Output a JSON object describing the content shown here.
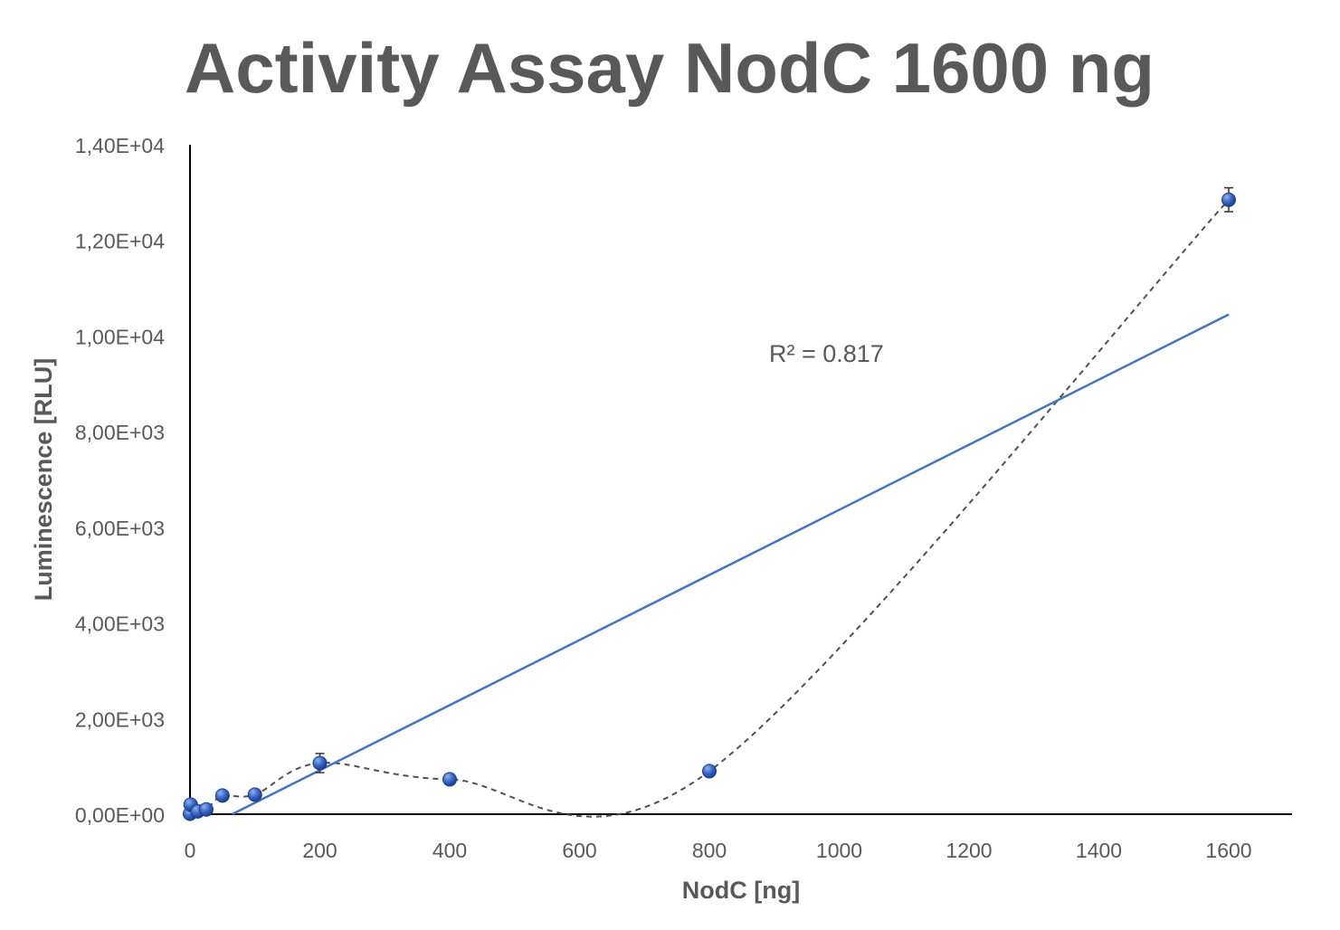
{
  "chart_data": {
    "type": "scatter",
    "title": "Activity Assay NodC 1600 ng",
    "xlabel": "NodC [ng]",
    "ylabel": "Luminescence [RLU]",
    "xlim": [
      0,
      1700
    ],
    "ylim": [
      0,
      14000
    ],
    "x_ticks": [
      0,
      200,
      400,
      600,
      800,
      1000,
      1200,
      1400,
      1600
    ],
    "x_tick_labels": [
      "0",
      "200",
      "400",
      "600",
      "800",
      "1000",
      "1200",
      "1400",
      "1600"
    ],
    "y_ticks": [
      0,
      2000,
      4000,
      6000,
      8000,
      10000,
      12000,
      14000
    ],
    "y_tick_labels": [
      "0,00E+00",
      "2,00E+03",
      "4,00E+03",
      "6,00E+03",
      "8,00E+03",
      "1,00E+04",
      "1,20E+04",
      "1,40E+04"
    ],
    "grid": false,
    "legend": "none",
    "series": [
      {
        "points": [
          {
            "x": 0,
            "y": 10,
            "err": 0
          },
          {
            "x": 1,
            "y": 200,
            "err": 0
          },
          {
            "x": 12,
            "y": 60,
            "err": 0
          },
          {
            "x": 25,
            "y": 100,
            "err": 0
          },
          {
            "x": 50,
            "y": 390,
            "err": 0
          },
          {
            "x": 100,
            "y": 410,
            "err": 0
          },
          {
            "x": 200,
            "y": 1070,
            "err": 200
          },
          {
            "x": 400,
            "y": 730,
            "err": 110
          },
          {
            "x": 800,
            "y": 900,
            "err": 0
          },
          {
            "x": 1600,
            "y": 12850,
            "err": 250
          }
        ],
        "smooth_line": "dashed",
        "color": "#3a66c4"
      }
    ],
    "trendline": {
      "type": "linear",
      "color": "#4472c4",
      "start": {
        "x": 65,
        "y": 0
      },
      "end": {
        "x": 1600,
        "y": 10450
      },
      "r_squared_label": "R² = 0.817"
    }
  }
}
